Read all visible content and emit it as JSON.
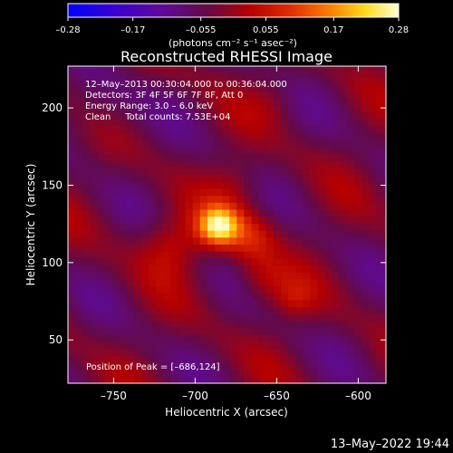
{
  "footer_timestamp": "13–May–2022 19:44",
  "chart_data": {
    "type": "heatmap",
    "title": "Reconstructed RHESSI Image",
    "xlabel": "Heliocentric X (arcsec)",
    "ylabel": "Heliocentric Y (arcsec)",
    "xlim": [
      -778,
      -583
    ],
    "ylim": [
      22,
      227
    ],
    "x_ticks": [
      -750,
      -700,
      -650,
      -600
    ],
    "x_tick_labels": [
      "–750",
      "–700",
      "–650",
      "–600"
    ],
    "y_ticks": [
      50,
      100,
      150,
      200
    ],
    "y_tick_labels": [
      "50",
      "100",
      "150",
      "200"
    ],
    "colorbar": {
      "range": [
        -0.28,
        0.28
      ],
      "ticks": [
        -0.28,
        -0.17,
        -0.055,
        0.055,
        0.17,
        0.28
      ],
      "tick_labels": [
        "–0.28",
        "–0.17",
        "–0.055",
        "0.055",
        "0.17",
        "0.28"
      ],
      "unit_label": "(photons cm⁻² s⁻¹ asec⁻²)"
    },
    "annotations": [
      "12–May–2013 00:30:04.000 to 00:36:04.000",
      "Detectors: 3F 4F 5F 6F 7F 8F, Att 0",
      "Energy Range: 3.0 – 6.0 keV",
      "Clean     Total counts: 7.53E+04"
    ],
    "peak_text": "Position of Peak = [–686,124]",
    "peak": {
      "x": -686,
      "y": 124,
      "value": 0.28
    }
  }
}
